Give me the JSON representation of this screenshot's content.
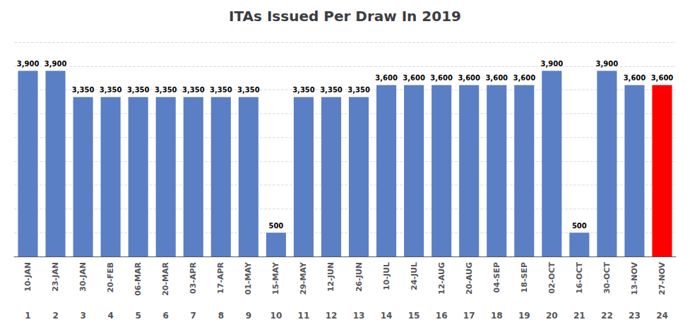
{
  "chart_data": {
    "type": "bar",
    "title": "ITAs Issued Per Draw In 2019",
    "categories": [
      "10-JAN",
      "23-JAN",
      "30-JAN",
      "20-FEB",
      "06-MAR",
      "20-MAR",
      "03-APR",
      "17-APR",
      "01-MAY",
      "15-MAY",
      "29-MAY",
      "12-JUN",
      "26-JUN",
      "10-JUL",
      "24-JUL",
      "12-AUG",
      "20-AUG",
      "04-SEP",
      "18-SEP",
      "02-OCT",
      "16-OCT",
      "30-OCT",
      "13-NOV",
      "27-NOV"
    ],
    "draw_numbers": [
      "1",
      "2",
      "3",
      "4",
      "5",
      "6",
      "7",
      "8",
      "9",
      "10",
      "11",
      "12",
      "13",
      "14",
      "15",
      "16",
      "17",
      "18",
      "19",
      "20",
      "21",
      "22",
      "23",
      "24"
    ],
    "values": [
      3900,
      3900,
      3350,
      3350,
      3350,
      3350,
      3350,
      3350,
      3350,
      500,
      3350,
      3350,
      3350,
      3600,
      3600,
      3600,
      3600,
      3600,
      3600,
      3900,
      500,
      3900,
      3600,
      3600
    ],
    "value_labels": [
      "3,900",
      "3,900",
      "3,350",
      "3,350",
      "3,350",
      "3,350",
      "3,350",
      "3,350",
      "3,350",
      "500",
      "3,350",
      "3,350",
      "3,350",
      "3,600",
      "3,600",
      "3,600",
      "3,600",
      "3,600",
      "3,600",
      "3,900",
      "500",
      "3,900",
      "3,600",
      "3,600"
    ],
    "colors": [
      "#5B7FC4",
      "#5B7FC4",
      "#5B7FC4",
      "#5B7FC4",
      "#5B7FC4",
      "#5B7FC4",
      "#5B7FC4",
      "#5B7FC4",
      "#5B7FC4",
      "#5B7FC4",
      "#5B7FC4",
      "#5B7FC4",
      "#5B7FC4",
      "#5B7FC4",
      "#5B7FC4",
      "#5B7FC4",
      "#5B7FC4",
      "#5B7FC4",
      "#5B7FC4",
      "#5B7FC4",
      "#5B7FC4",
      "#5B7FC4",
      "#5B7FC4",
      "#FF0000"
    ],
    "ylim": [
      0,
      4500
    ],
    "yticks": [
      0,
      500,
      1000,
      1500,
      2000,
      2500,
      3000,
      3500,
      4000,
      4500
    ],
    "grid": true,
    "data_labels": true,
    "tick_labels": "x"
  }
}
